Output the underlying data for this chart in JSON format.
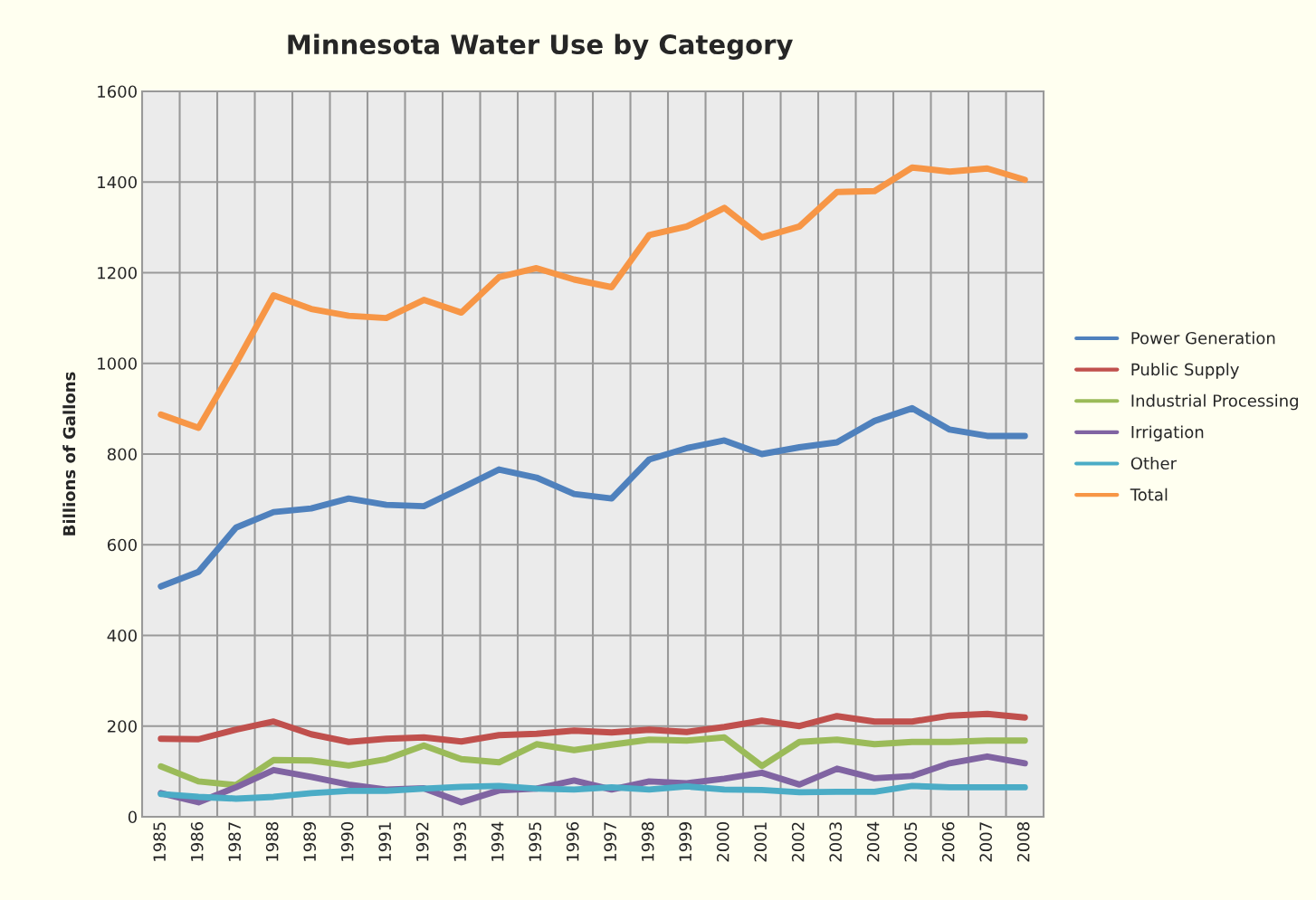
{
  "chart_data": {
    "type": "line",
    "title": "Minnesota Water Use by Category",
    "ylabel": "Billions of Gallons",
    "categories": [
      "1985",
      "1986",
      "1987",
      "1988",
      "1989",
      "1990",
      "1991",
      "1992",
      "1993",
      "1994",
      "1995",
      "1996",
      "1997",
      "1998",
      "1999",
      "2000",
      "2001",
      "2002",
      "2003",
      "2004",
      "2005",
      "2006",
      "2007",
      "2008"
    ],
    "series": [
      {
        "name": "Power Generation",
        "color": "#4f81bd",
        "values": [
          508,
          540,
          638,
          672,
          680,
          702,
          688,
          685,
          725,
          766,
          748,
          712,
          702,
          788,
          813,
          830,
          800,
          815,
          826,
          873,
          901,
          854,
          840,
          840
        ]
      },
      {
        "name": "Public Supply",
        "color": "#c0504d",
        "values": [
          172,
          171,
          192,
          210,
          182,
          165,
          172,
          175,
          166,
          180,
          183,
          190,
          186,
          192,
          187,
          198,
          212,
          200,
          222,
          210,
          210,
          223,
          227,
          219
        ]
      },
      {
        "name": "Industrial Processing",
        "color": "#9bbb59",
        "values": [
          111,
          78,
          70,
          125,
          124,
          113,
          127,
          157,
          127,
          120,
          160,
          147,
          159,
          170,
          168,
          175,
          112,
          165,
          170,
          160,
          165,
          165,
          168,
          168
        ]
      },
      {
        "name": "Irrigation",
        "color": "#8064a2",
        "values": [
          52,
          32,
          65,
          103,
          88,
          71,
          60,
          63,
          32,
          58,
          62,
          80,
          60,
          78,
          74,
          84,
          97,
          71,
          106,
          85,
          90,
          118,
          133,
          118
        ]
      },
      {
        "name": "Other",
        "color": "#4bacc6",
        "values": [
          50,
          44,
          40,
          44,
          52,
          57,
          57,
          62,
          66,
          68,
          62,
          60,
          65,
          60,
          67,
          60,
          59,
          54,
          55,
          55,
          68,
          65,
          65,
          65
        ]
      },
      {
        "name": "Total",
        "color": "#f79646",
        "values": [
          887,
          858,
          1000,
          1150,
          1120,
          1105,
          1100,
          1140,
          1112,
          1190,
          1210,
          1185,
          1168,
          1283,
          1302,
          1343,
          1278,
          1302,
          1378,
          1380,
          1432,
          1423,
          1430,
          1405
        ]
      }
    ],
    "ylim": [
      0,
      1600
    ],
    "yticks": [
      0,
      200,
      400,
      600,
      800,
      1000,
      1200,
      1400,
      1600
    ],
    "grid": true,
    "legend": "right",
    "marker": "none",
    "line_style": "solid"
  }
}
